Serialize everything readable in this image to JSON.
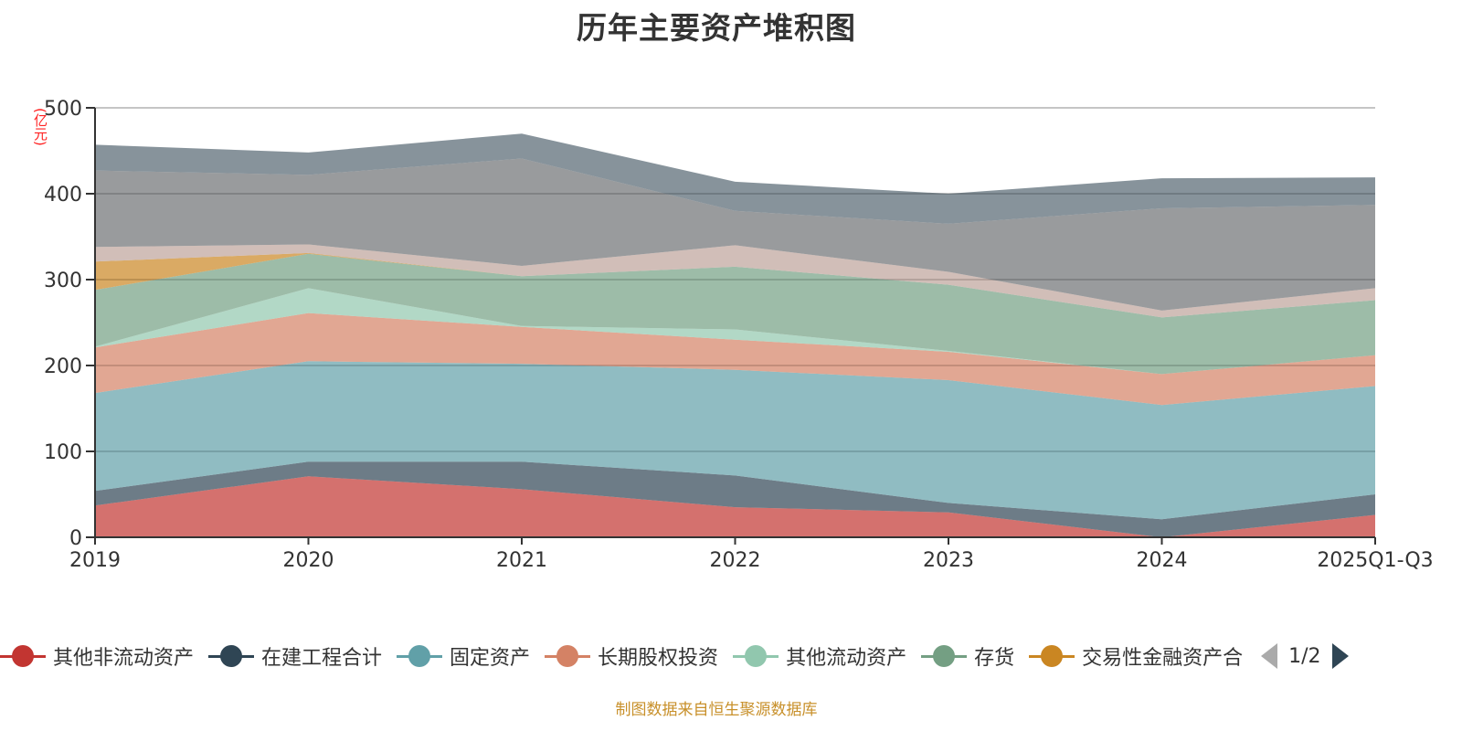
{
  "title": "历年主要资产堆积图",
  "unit_label": "(亿元)",
  "source_note": "制图数据来自恒生聚源数据库",
  "legend": {
    "items": [
      {
        "label": "其他非流动资产",
        "color": "#c23531"
      },
      {
        "label": "在建工程合计",
        "color": "#2f4554"
      },
      {
        "label": "固定资产",
        "color": "#61a0a8"
      },
      {
        "label": "长期股权投资",
        "color": "#d48265"
      },
      {
        "label": "其他流动资产",
        "color": "#91c7ae"
      },
      {
        "label": "存货",
        "color": "#749f83"
      },
      {
        "label": "交易性金融资产合",
        "color": "#ca8622"
      }
    ],
    "page_indicator": "1/2"
  },
  "chart_data": {
    "type": "area",
    "stacked": true,
    "title": "历年主要资产堆积图",
    "xlabel": "",
    "ylabel": "(亿元)",
    "ylim": [
      0,
      500
    ],
    "yticks": [
      0,
      100,
      200,
      300,
      400,
      500
    ],
    "grid": true,
    "legend_position": "bottom",
    "categories": [
      "2019",
      "2020",
      "2021",
      "2022",
      "2023",
      "2024",
      "2025Q1-Q3"
    ],
    "series": [
      {
        "name": "其他非流动资产",
        "color": "#c23531",
        "values": [
          37,
          71,
          56,
          35,
          29,
          0,
          26
        ]
      },
      {
        "name": "在建工程合计",
        "color": "#2f4554",
        "values": [
          17,
          17,
          32,
          37,
          11,
          21,
          24
        ]
      },
      {
        "name": "固定资产",
        "color": "#61a0a8",
        "values": [
          114,
          117,
          114,
          123,
          143,
          133,
          126
        ]
      },
      {
        "name": "长期股权投资",
        "color": "#d48265",
        "values": [
          53,
          56,
          43,
          35,
          33,
          36,
          36
        ]
      },
      {
        "name": "其他流动资产",
        "color": "#91c7ae",
        "values": [
          1,
          29,
          1,
          12,
          1,
          0,
          0
        ]
      },
      {
        "name": "存货",
        "color": "#749f83",
        "values": [
          66,
          40,
          58,
          73,
          77,
          66,
          64
        ]
      },
      {
        "name": "交易性金融资产合",
        "color": "#ca8622",
        "values": [
          33,
          1,
          0,
          0,
          0,
          0,
          0
        ]
      },
      {
        "name": "",
        "color": "#bda29a",
        "values": [
          17,
          10,
          12,
          25,
          15,
          8,
          14
        ]
      },
      {
        "name": "",
        "color": "#6e7074",
        "values": [
          89,
          81,
          125,
          40,
          56,
          119,
          97
        ]
      },
      {
        "name": "",
        "color": "#546570",
        "values": [
          30,
          26,
          29,
          34,
          35,
          35,
          32
        ]
      }
    ]
  }
}
